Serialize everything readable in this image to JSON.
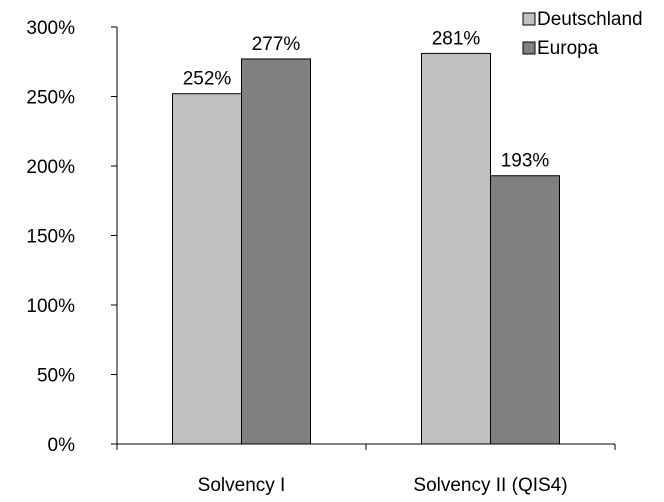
{
  "chart_data": {
    "type": "bar",
    "categories": [
      "Solvency I",
      "Solvency II (QIS4)"
    ],
    "series": [
      {
        "name": "Deutschland",
        "values": [
          252,
          281
        ],
        "labels": [
          "252%",
          "281%"
        ],
        "color": "#c0c0c0"
      },
      {
        "name": "Europa",
        "values": [
          277,
          193
        ],
        "labels": [
          "277%",
          "193%"
        ],
        "color": "#808080"
      }
    ],
    "ylim": [
      0,
      300
    ],
    "yticks": [
      0,
      50,
      100,
      150,
      200,
      250,
      300
    ],
    "ytick_labels": [
      "0%",
      "50%",
      "100%",
      "150%",
      "200%",
      "250%",
      "300%"
    ],
    "title": "",
    "xlabel": "",
    "ylabel": "",
    "grid": false,
    "legend_position": "top-right"
  }
}
